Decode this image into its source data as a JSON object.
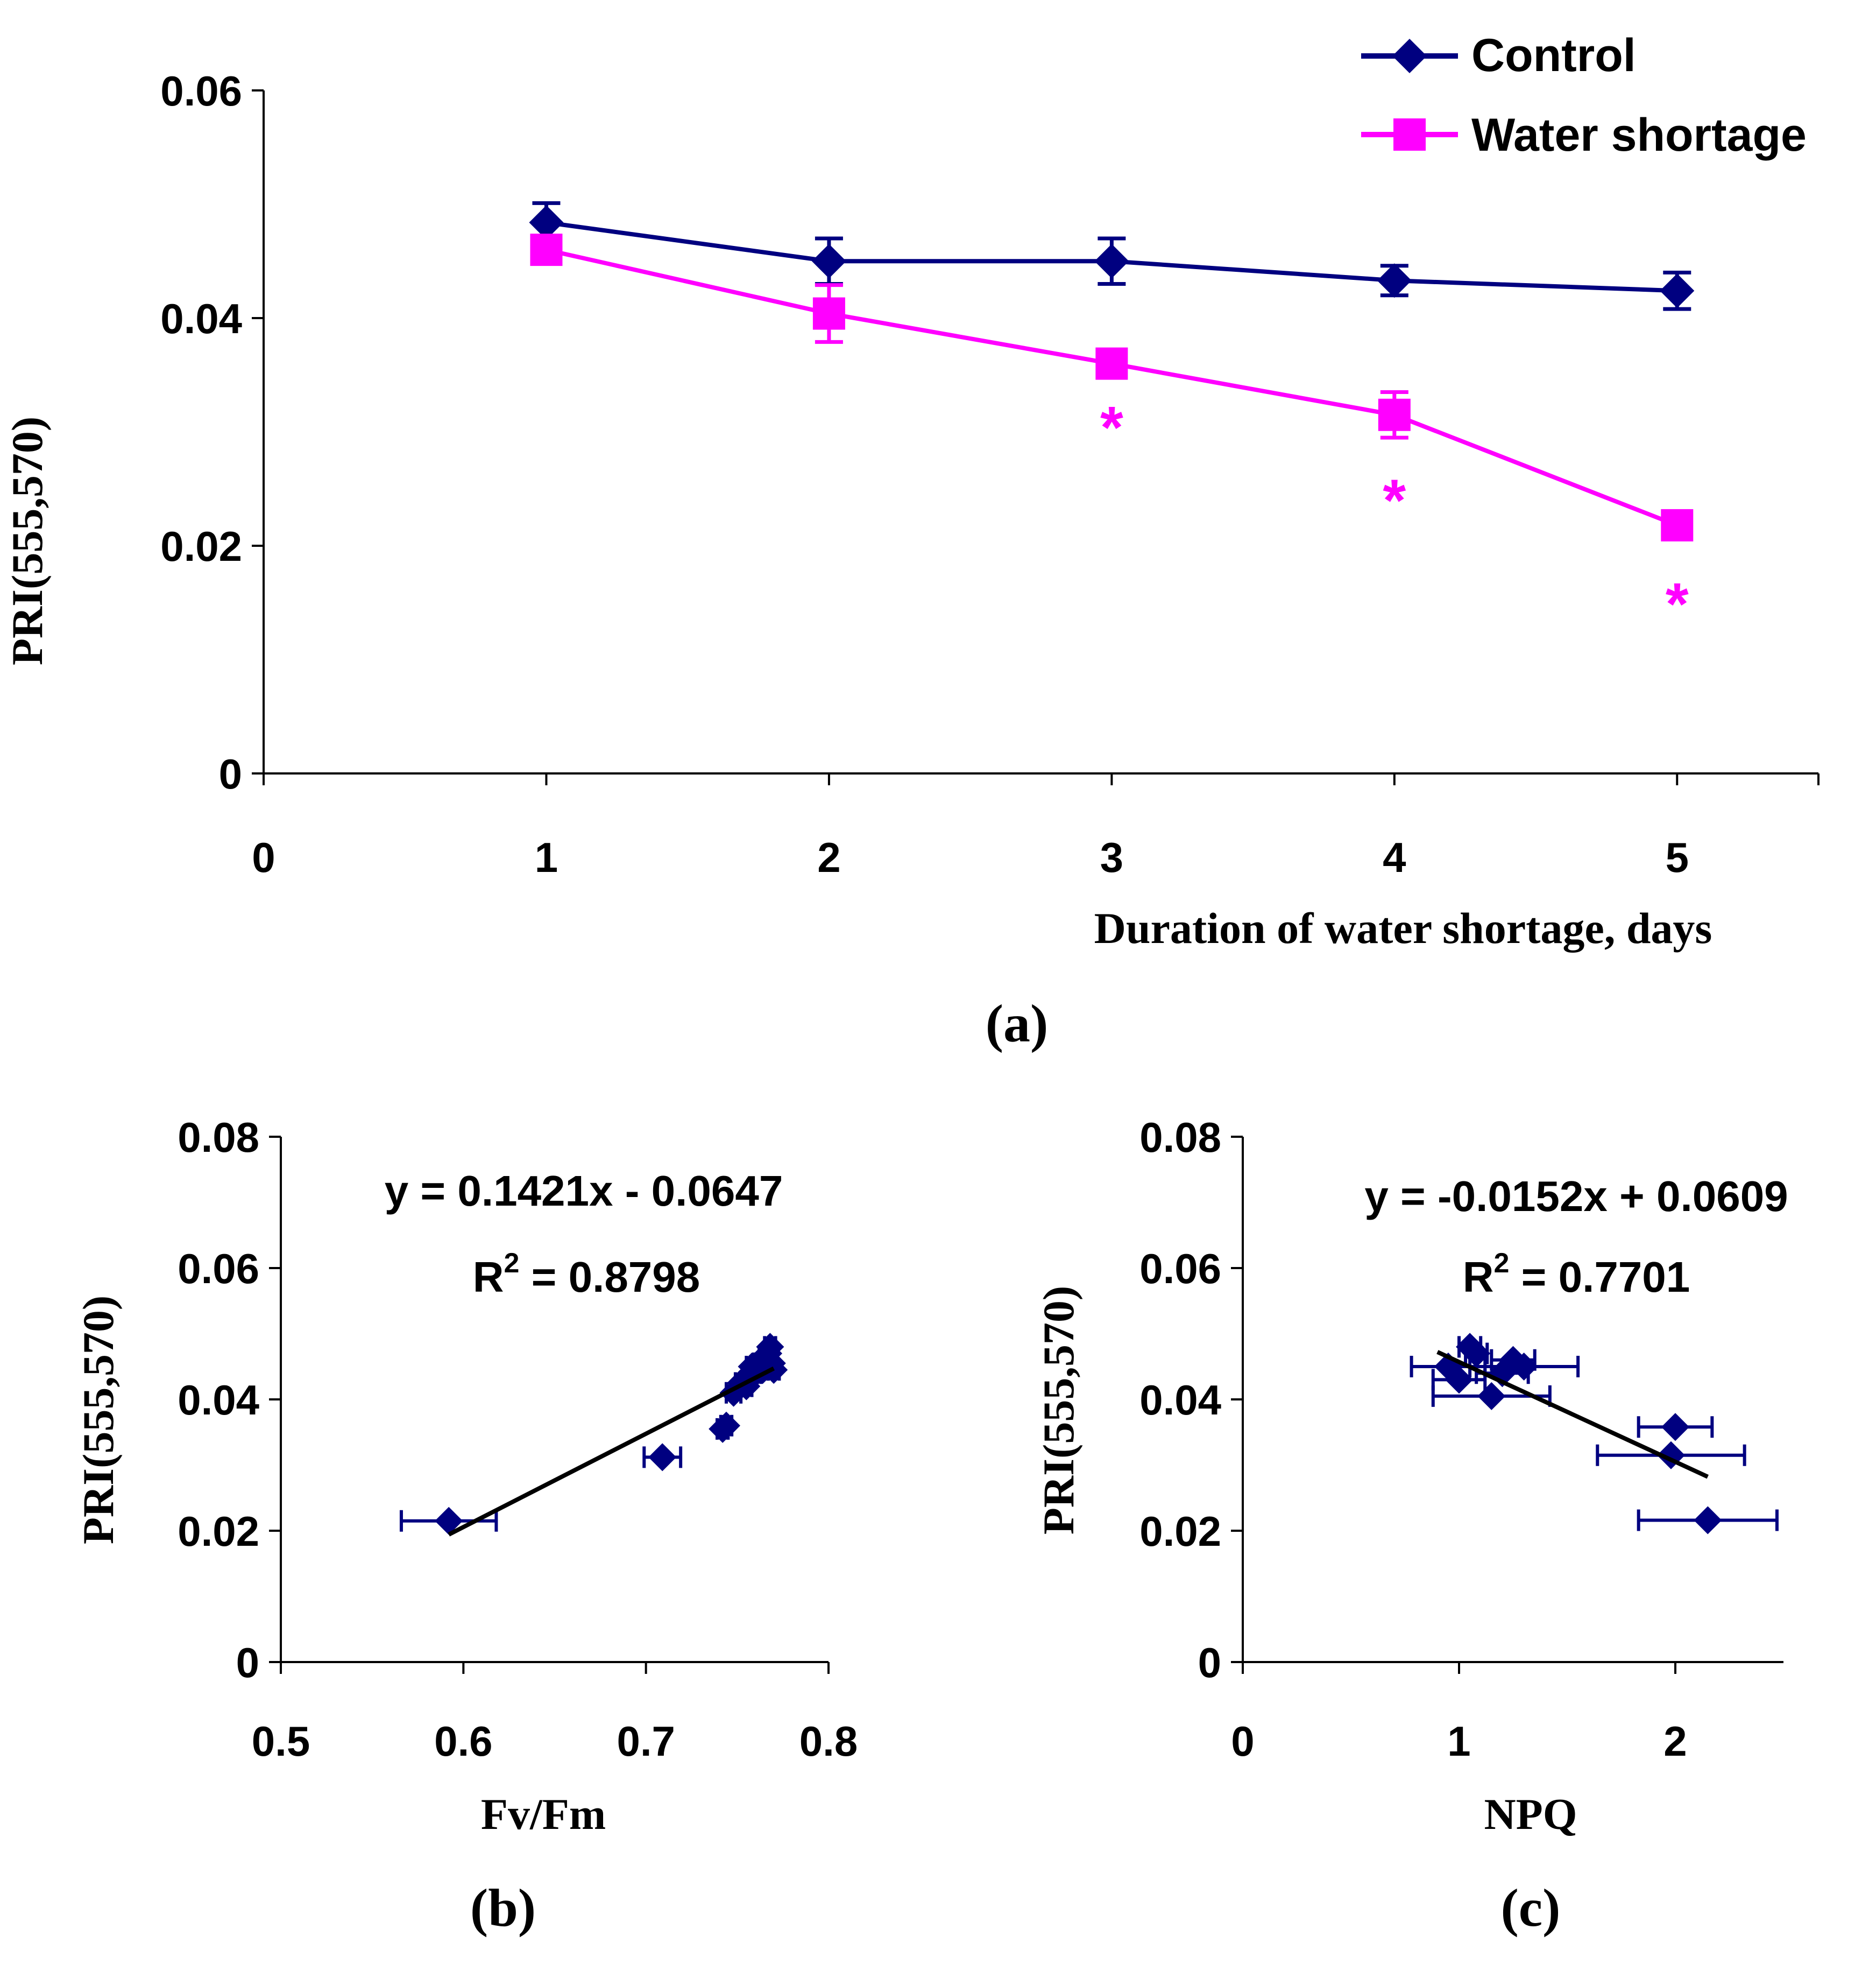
{
  "colors": {
    "control": "#000080",
    "water_shortage": "#FF00FF",
    "trend": "#000000",
    "axis": "#000000"
  },
  "chart_data": [
    {
      "id": "a",
      "panel_label": "(a)",
      "type": "line",
      "xlabel": "Duration of water shortage, days",
      "ylabel": "PRI(555,570)",
      "xlim": [
        0,
        5.5
      ],
      "ylim": [
        0,
        0.06
      ],
      "xticks": [
        0,
        1,
        2,
        3,
        4,
        5
      ],
      "xtick_labels": [
        "0",
        "1",
        "2",
        "3",
        "4",
        "5"
      ],
      "yticks": [
        0,
        0.02,
        0.04,
        0.06
      ],
      "ytick_labels": [
        "0",
        "0.02",
        "0.04",
        "0.06"
      ],
      "legend_position": "top-right",
      "series": [
        {
          "name": "Control",
          "marker": "diamond",
          "x": [
            1,
            2,
            3,
            4,
            5
          ],
          "y": [
            0.0484,
            0.045,
            0.045,
            0.0433,
            0.0424
          ],
          "yerr": [
            0.0017,
            0.002,
            0.002,
            0.0013,
            0.0016
          ]
        },
        {
          "name": "Water shortage",
          "marker": "square",
          "x": [
            1,
            2,
            3,
            4,
            5
          ],
          "y": [
            0.046,
            0.0404,
            0.036,
            0.0315,
            0.0218
          ],
          "yerr": [
            0.001,
            0.0025,
            0.0012,
            0.002,
            0.001
          ]
        }
      ],
      "annotations": [
        {
          "text": "*",
          "x": 3,
          "y": 0.0312
        },
        {
          "text": "*",
          "x": 4,
          "y": 0.0248
        },
        {
          "text": "*",
          "x": 5,
          "y": 0.0157
        }
      ]
    },
    {
      "id": "b",
      "panel_label": "(b)",
      "type": "scatter",
      "xlabel": "Fv/Fm",
      "ylabel": "PRI(555,570)",
      "xlim": [
        0.5,
        0.8
      ],
      "ylim": [
        0,
        0.08
      ],
      "xticks": [
        0.5,
        0.6,
        0.7,
        0.8
      ],
      "xtick_labels": [
        "0.5",
        "0.6",
        "0.7",
        "0.8"
      ],
      "yticks": [
        0,
        0.02,
        0.04,
        0.06,
        0.08
      ],
      "ytick_labels": [
        "0",
        "0.02",
        "0.04",
        "0.06",
        "0.08"
      ],
      "equation": "y = 0.1421x - 0.0647",
      "r2_label": "R",
      "r2_sup": "2",
      "r2_value": " = 0.8798",
      "points": {
        "x": [
          0.592,
          0.709,
          0.742,
          0.744,
          0.748,
          0.752,
          0.755,
          0.758,
          0.76,
          0.762,
          0.764,
          0.765,
          0.766,
          0.767,
          0.768,
          0.769,
          0.77
        ],
        "y": [
          0.0215,
          0.0312,
          0.0355,
          0.036,
          0.041,
          0.0425,
          0.042,
          0.045,
          0.044,
          0.0455,
          0.0445,
          0.0465,
          0.045,
          0.047,
          0.048,
          0.0455,
          0.0445
        ],
        "xerr": [
          0.026,
          0.01,
          0.003,
          0.003,
          0.004,
          0.003,
          0.003,
          0.003,
          0.003,
          0.003,
          0.003,
          0.003,
          0.003,
          0.003,
          0.003,
          0.003,
          0.003
        ]
      },
      "trendline": {
        "x": [
          0.592,
          0.77
        ],
        "slope": 0.1421,
        "intercept": -0.0647
      }
    },
    {
      "id": "c",
      "panel_label": "(c)",
      "type": "scatter",
      "xlabel": "NPQ",
      "ylabel": "PRI(555,570)",
      "xlim": [
        0,
        2.5
      ],
      "ylim": [
        0,
        0.08
      ],
      "xticks": [
        0,
        1,
        2
      ],
      "xtick_labels": [
        "0",
        "1",
        "2"
      ],
      "yticks": [
        0,
        0.02,
        0.04,
        0.06,
        0.08
      ],
      "ytick_labels": [
        "0",
        "0.02",
        "0.04",
        "0.06",
        "0.08"
      ],
      "equation": "y = -0.0152x + 0.0609",
      "r2_label": "R",
      "r2_sup": "2",
      "r2_value": " = 0.7701",
      "points": {
        "x": [
          0.95,
          1.0,
          1.05,
          1.08,
          1.2,
          1.25,
          1.3,
          1.15,
          2.0,
          1.98,
          2.15
        ],
        "y": [
          0.045,
          0.043,
          0.048,
          0.047,
          0.044,
          0.046,
          0.045,
          0.0405,
          0.0358,
          0.0315,
          0.0216
        ],
        "xerr": [
          0.17,
          0.12,
          0.05,
          0.05,
          0.12,
          0.1,
          0.25,
          0.27,
          0.17,
          0.34,
          0.32
        ]
      },
      "trendline": {
        "x": [
          0.9,
          2.15
        ],
        "slope": -0.0152,
        "intercept": 0.0609
      }
    }
  ]
}
